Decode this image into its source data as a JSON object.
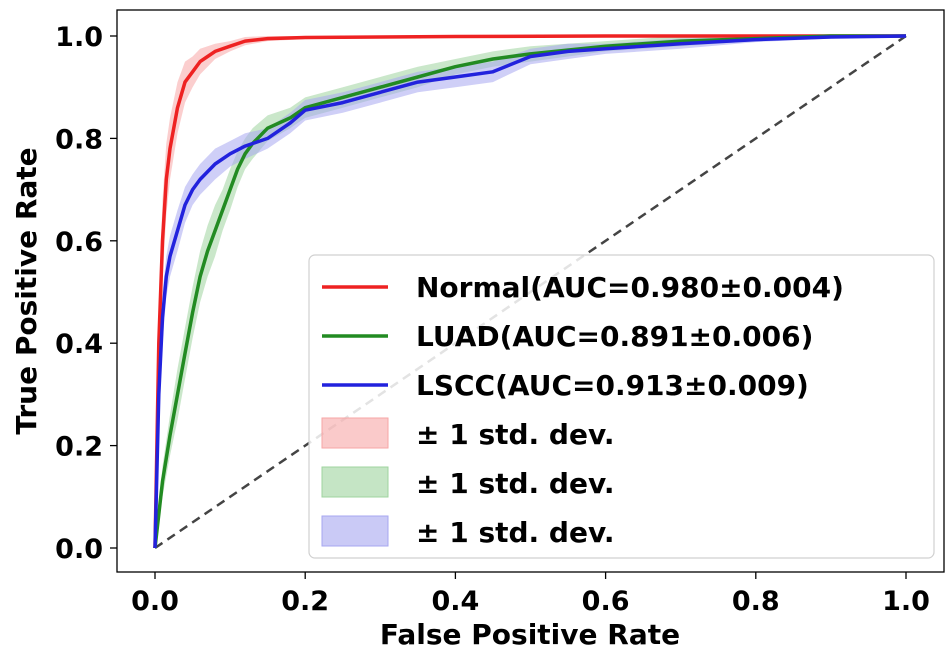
{
  "chart_data": {
    "type": "line",
    "xlabel": "False Positive Rate",
    "ylabel": "True Positive Rate",
    "xlim": [
      -0.05,
      1.05
    ],
    "ylim": [
      -0.05,
      1.05
    ],
    "x_ticks": [
      "0.0",
      "0.2",
      "0.4",
      "0.6",
      "0.8",
      "1.0"
    ],
    "y_ticks": [
      "0.0",
      "0.2",
      "0.4",
      "0.6",
      "0.8",
      "1.0"
    ],
    "grid": false,
    "legend_position": "lower-right",
    "diagonal": {
      "x": [
        0,
        1
      ],
      "y": [
        0,
        1
      ],
      "color": "#444444",
      "style": "dashed"
    },
    "series": [
      {
        "name": "Normal(AUC=0.980±0.004)",
        "color": "#ee2222",
        "band_color": "#f7a6a6",
        "x": [
          0,
          0.005,
          0.01,
          0.015,
          0.02,
          0.03,
          0.04,
          0.05,
          0.06,
          0.07,
          0.08,
          0.1,
          0.12,
          0.15,
          0.2,
          0.3,
          0.4,
          0.6,
          0.8,
          1.0
        ],
        "y": [
          0,
          0.4,
          0.6,
          0.72,
          0.78,
          0.86,
          0.91,
          0.93,
          0.95,
          0.96,
          0.97,
          0.98,
          0.99,
          0.995,
          0.997,
          0.998,
          0.999,
          1.0,
          1.0,
          1.0
        ],
        "std": [
          0,
          0.08,
          0.08,
          0.07,
          0.06,
          0.05,
          0.04,
          0.03,
          0.025,
          0.02,
          0.015,
          0.01,
          0.008,
          0.005,
          0.003,
          0.002,
          0.001,
          0,
          0,
          0
        ]
      },
      {
        "name": "LUAD(AUC=0.891±0.006)",
        "color": "#228b22",
        "band_color": "#9fd49f",
        "x": [
          0,
          0.01,
          0.02,
          0.03,
          0.04,
          0.05,
          0.06,
          0.07,
          0.08,
          0.09,
          0.1,
          0.11,
          0.12,
          0.13,
          0.15,
          0.18,
          0.2,
          0.25,
          0.3,
          0.35,
          0.4,
          0.45,
          0.5,
          0.6,
          0.7,
          0.8,
          0.9,
          1.0
        ],
        "y": [
          0,
          0.13,
          0.22,
          0.3,
          0.38,
          0.46,
          0.53,
          0.58,
          0.62,
          0.66,
          0.7,
          0.74,
          0.77,
          0.79,
          0.82,
          0.84,
          0.86,
          0.88,
          0.9,
          0.92,
          0.94,
          0.955,
          0.965,
          0.98,
          0.99,
          0.995,
          1.0,
          1.0
        ],
        "std": [
          0,
          0.03,
          0.04,
          0.05,
          0.05,
          0.05,
          0.05,
          0.05,
          0.05,
          0.04,
          0.04,
          0.035,
          0.03,
          0.03,
          0.025,
          0.02,
          0.02,
          0.02,
          0.02,
          0.02,
          0.015,
          0.015,
          0.015,
          0.01,
          0.01,
          0.005,
          0.003,
          0
        ]
      },
      {
        "name": "LSCC(AUC=0.913±0.009)",
        "color": "#2222dd",
        "band_color": "#a7a7f0",
        "x": [
          0,
          0.005,
          0.01,
          0.015,
          0.02,
          0.03,
          0.04,
          0.05,
          0.06,
          0.08,
          0.1,
          0.12,
          0.15,
          0.18,
          0.2,
          0.25,
          0.3,
          0.35,
          0.4,
          0.45,
          0.5,
          0.55,
          0.6,
          0.7,
          0.8,
          0.9,
          1.0
        ],
        "y": [
          0,
          0.3,
          0.45,
          0.53,
          0.57,
          0.62,
          0.67,
          0.7,
          0.72,
          0.75,
          0.77,
          0.785,
          0.8,
          0.83,
          0.855,
          0.87,
          0.89,
          0.91,
          0.92,
          0.93,
          0.96,
          0.97,
          0.975,
          0.985,
          0.993,
          0.998,
          1.0
        ],
        "std": [
          0,
          0.05,
          0.05,
          0.04,
          0.04,
          0.04,
          0.035,
          0.03,
          0.03,
          0.03,
          0.025,
          0.025,
          0.02,
          0.02,
          0.02,
          0.02,
          0.02,
          0.02,
          0.02,
          0.02,
          0.015,
          0.015,
          0.01,
          0.01,
          0.005,
          0.003,
          0
        ]
      }
    ],
    "legend_entries": [
      {
        "label": "Normal(AUC=0.980±0.004)",
        "kind": "line",
        "color": "#ee2222"
      },
      {
        "label": "LUAD(AUC=0.891±0.006)",
        "kind": "line",
        "color": "#228b22"
      },
      {
        "label": "LSCC(AUC=0.913±0.009)",
        "kind": "line",
        "color": "#2222dd"
      },
      {
        "label": "± 1 std. dev.",
        "kind": "band",
        "color": "#f7a6a6"
      },
      {
        "label": "± 1 std. dev.",
        "kind": "band",
        "color": "#9fd49f"
      },
      {
        "label": "± 1 std. dev.",
        "kind": "band",
        "color": "#a7a7f0"
      }
    ]
  }
}
